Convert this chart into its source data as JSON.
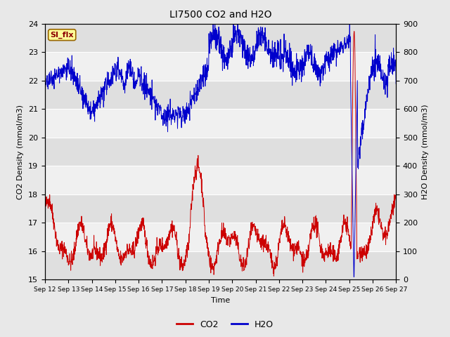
{
  "title": "LI7500 CO2 and H2O",
  "xlabel": "Time",
  "ylabel_left": "CO2 Density (mmol/m3)",
  "ylabel_right": "H2O Density (mmol/m3)",
  "ylim_left": [
    15.0,
    24.0
  ],
  "ylim_right": [
    0,
    900
  ],
  "yticks_left": [
    15.0,
    16.0,
    17.0,
    18.0,
    19.0,
    20.0,
    21.0,
    22.0,
    23.0,
    24.0
  ],
  "yticks_right": [
    0,
    100,
    200,
    300,
    400,
    500,
    600,
    700,
    800,
    900
  ],
  "co2_color": "#cc0000",
  "h2o_color": "#0000cc",
  "background_color": "#e8e8e8",
  "plot_bg_color": "#f0f0f0",
  "annotation_text": "SI_flx",
  "annotation_bg": "#ffff99",
  "annotation_border": "#996600",
  "xtick_labels": [
    "Sep 12",
    "Sep 13",
    "Sep 14",
    "Sep 15",
    "Sep 16",
    "Sep 17",
    "Sep 18",
    "Sep 19",
    "Sep 20",
    "Sep 21",
    "Sep 22",
    "Sep 23",
    "Sep 24",
    "Sep 25",
    "Sep 26",
    "Sep 27"
  ],
  "xtick_positions": [
    0,
    1,
    2,
    3,
    4,
    5,
    6,
    7,
    8,
    9,
    10,
    11,
    12,
    13,
    14,
    15
  ],
  "seed": 42
}
